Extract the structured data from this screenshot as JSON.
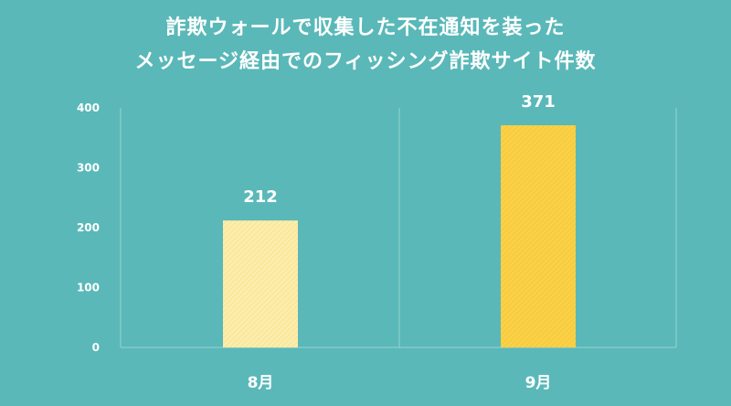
{
  "chart_data": {
    "type": "bar",
    "title_lines": [
      "詐欺ウォールで収集した不在通知を装った",
      "メッセージ経由でのフィッシング詐欺サイト件数"
    ],
    "categories": [
      "8月",
      "9月"
    ],
    "values": [
      212,
      371
    ],
    "data_labels": [
      "212",
      "371"
    ],
    "ylim": [
      0,
      400
    ],
    "yticks": [
      0,
      100,
      200,
      300,
      400
    ],
    "ytick_labels": [
      "0",
      "100",
      "200",
      "300",
      "400"
    ],
    "grid": false,
    "colors": {
      "background": "#5ab8b8",
      "bar_8": "#fbe79a",
      "bar_9": "#f8cc3c",
      "axis": "#9ad2d2"
    }
  }
}
